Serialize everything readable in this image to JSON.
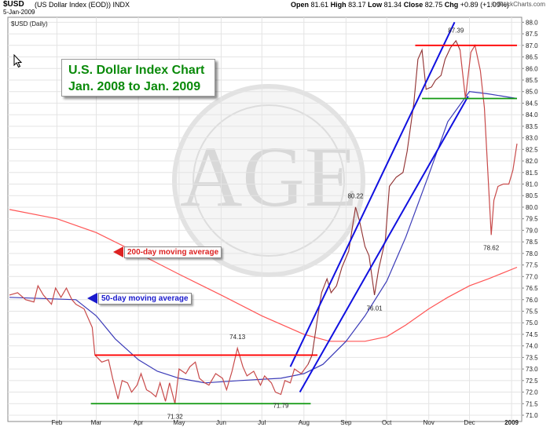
{
  "header": {
    "symbol": "$USD",
    "description": "(US Dollar Index (EOD)) INDX",
    "date": "5-Jan-2009",
    "panel_label": "$USD (Daily)",
    "open_label": "Open",
    "open": "81.61",
    "high_label": "High",
    "high": "83.17",
    "low_label": "Low",
    "low": "81.34",
    "close_label": "Close",
    "close": "82.75",
    "chg_label": "Chg",
    "chg": "+0.89 (+1.09%)",
    "credit": "© StockCharts.com"
  },
  "annotations": {
    "title_line1": "U.S. Dollar Index Chart",
    "title_line2": "Jan. 2008 to Jan. 2009",
    "ma200_label": "200-day moving average",
    "ma50_label": "50-day moving average"
  },
  "colors": {
    "price": "#c84a4a",
    "price_dark": "#222222",
    "ma50": "#3b3bb8",
    "ma200": "#ff5555",
    "channel": "#1010e0",
    "resistance": "#ff0000",
    "support": "#119911",
    "title_text": "#0a8a0a"
  },
  "chart_data": {
    "type": "line",
    "title": "U.S. Dollar Index Chart Jan. 2008 to Jan. 2009",
    "y_axis": {
      "min": 71.0,
      "max": 88.0,
      "step": 0.5,
      "side": "right"
    },
    "x_ticks": [
      "Feb",
      "Mar",
      "Apr",
      "May",
      "Jun",
      "Jul",
      "Aug",
      "Sep",
      "Oct",
      "Nov",
      "Dec",
      "2009"
    ],
    "grid": true,
    "point_labels": [
      {
        "text": "71.32",
        "date": "2008-04-28",
        "value": 71.32
      },
      {
        "text": "74.13",
        "date": "2008-06-13",
        "value": 74.13
      },
      {
        "text": "71.79",
        "date": "2008-07-15",
        "value": 71.79
      },
      {
        "text": "80.22",
        "date": "2008-09-08",
        "value": 80.22
      },
      {
        "text": "76.01",
        "date": "2008-09-22",
        "value": 76.01
      },
      {
        "text": "87.39",
        "date": "2008-11-21",
        "value": 87.39
      },
      {
        "text": "78.62",
        "date": "2008-12-17",
        "value": 78.62
      }
    ],
    "series": [
      {
        "name": "$USD",
        "points": [
          [
            "2007-12-28",
            76.2
          ],
          [
            "2008-01-03",
            76.3
          ],
          [
            "2008-01-09",
            76.0
          ],
          [
            "2008-01-15",
            75.9
          ],
          [
            "2008-01-18",
            76.6
          ],
          [
            "2008-01-22",
            76.2
          ],
          [
            "2008-01-28",
            75.8
          ],
          [
            "2008-01-31",
            76.5
          ],
          [
            "2008-02-04",
            76.1
          ],
          [
            "2008-02-08",
            76.5
          ],
          [
            "2008-02-12",
            76.0
          ],
          [
            "2008-02-15",
            75.8
          ],
          [
            "2008-02-21",
            75.6
          ],
          [
            "2008-02-27",
            74.8
          ],
          [
            "2008-02-29",
            73.6
          ],
          [
            "2008-03-05",
            73.3
          ],
          [
            "2008-03-10",
            73.4
          ],
          [
            "2008-03-13",
            72.6
          ],
          [
            "2008-03-17",
            71.7
          ],
          [
            "2008-03-20",
            72.5
          ],
          [
            "2008-03-24",
            72.4
          ],
          [
            "2008-03-27",
            72.0
          ],
          [
            "2008-03-31",
            72.3
          ],
          [
            "2008-04-03",
            72.8
          ],
          [
            "2008-04-07",
            72.1
          ],
          [
            "2008-04-10",
            72.0
          ],
          [
            "2008-04-14",
            71.8
          ],
          [
            "2008-04-17",
            72.4
          ],
          [
            "2008-04-21",
            71.6
          ],
          [
            "2008-04-24",
            72.4
          ],
          [
            "2008-04-28",
            71.5
          ],
          [
            "2008-05-01",
            73.0
          ],
          [
            "2008-05-06",
            72.8
          ],
          [
            "2008-05-09",
            73.1
          ],
          [
            "2008-05-13",
            73.3
          ],
          [
            "2008-05-16",
            72.6
          ],
          [
            "2008-05-20",
            72.4
          ],
          [
            "2008-05-23",
            72.3
          ],
          [
            "2008-05-28",
            72.8
          ],
          [
            "2008-06-02",
            72.6
          ],
          [
            "2008-06-05",
            72.1
          ],
          [
            "2008-06-09",
            72.9
          ],
          [
            "2008-06-13",
            73.9
          ],
          [
            "2008-06-17",
            73.1
          ],
          [
            "2008-06-20",
            72.7
          ],
          [
            "2008-06-25",
            72.9
          ],
          [
            "2008-06-30",
            72.3
          ],
          [
            "2008-07-03",
            72.7
          ],
          [
            "2008-07-08",
            72.4
          ],
          [
            "2008-07-11",
            72.0
          ],
          [
            "2008-07-15",
            71.9
          ],
          [
            "2008-07-18",
            72.5
          ],
          [
            "2008-07-22",
            72.4
          ],
          [
            "2008-07-25",
            73.0
          ],
          [
            "2008-07-30",
            72.8
          ],
          [
            "2008-08-04",
            73.2
          ],
          [
            "2008-08-07",
            73.6
          ],
          [
            "2008-08-11",
            75.2
          ],
          [
            "2008-08-14",
            76.3
          ],
          [
            "2008-08-18",
            76.9
          ],
          [
            "2008-08-21",
            76.3
          ],
          [
            "2008-08-25",
            76.6
          ],
          [
            "2008-08-29",
            77.4
          ],
          [
            "2008-09-03",
            78.1
          ],
          [
            "2008-09-08",
            80.0
          ],
          [
            "2008-09-11",
            79.4
          ],
          [
            "2008-09-15",
            78.3
          ],
          [
            "2008-09-18",
            77.9
          ],
          [
            "2008-09-22",
            76.2
          ],
          [
            "2008-09-25",
            77.3
          ],
          [
            "2008-09-30",
            78.6
          ],
          [
            "2008-10-03",
            80.9
          ],
          [
            "2008-10-08",
            81.3
          ],
          [
            "2008-10-13",
            81.5
          ],
          [
            "2008-10-16",
            82.4
          ],
          [
            "2008-10-21",
            84.5
          ],
          [
            "2008-10-24",
            86.4
          ],
          [
            "2008-10-27",
            86.8
          ],
          [
            "2008-10-30",
            85.1
          ],
          [
            "2008-11-03",
            85.2
          ],
          [
            "2008-11-06",
            85.5
          ],
          [
            "2008-11-10",
            85.7
          ],
          [
            "2008-11-13",
            86.4
          ],
          [
            "2008-11-17",
            86.9
          ],
          [
            "2008-11-21",
            87.2
          ],
          [
            "2008-11-24",
            86.8
          ],
          [
            "2008-11-28",
            84.7
          ],
          [
            "2008-12-02",
            86.7
          ],
          [
            "2008-12-05",
            87.0
          ],
          [
            "2008-12-09",
            85.9
          ],
          [
            "2008-12-12",
            84.3
          ],
          [
            "2008-12-17",
            78.8
          ],
          [
            "2008-12-19",
            80.3
          ],
          [
            "2008-12-22",
            80.9
          ],
          [
            "2008-12-26",
            81.0
          ],
          [
            "2008-12-30",
            81.0
          ],
          [
            "2009-01-02",
            81.6
          ],
          [
            "2009-01-05",
            82.75
          ]
        ]
      },
      {
        "name": "50-day moving average",
        "points": [
          [
            "2007-12-28",
            76.1
          ],
          [
            "2008-02-15",
            76.0
          ],
          [
            "2008-03-01",
            75.3
          ],
          [
            "2008-03-15",
            74.3
          ],
          [
            "2008-04-01",
            73.4
          ],
          [
            "2008-04-15",
            72.9
          ],
          [
            "2008-05-01",
            72.6
          ],
          [
            "2008-05-20",
            72.4
          ],
          [
            "2008-06-15",
            72.5
          ],
          [
            "2008-07-15",
            72.6
          ],
          [
            "2008-08-01",
            72.8
          ],
          [
            "2008-08-15",
            73.2
          ],
          [
            "2008-09-01",
            74.2
          ],
          [
            "2008-09-15",
            75.3
          ],
          [
            "2008-10-01",
            76.8
          ],
          [
            "2008-10-15",
            78.7
          ],
          [
            "2008-11-01",
            81.4
          ],
          [
            "2008-11-15",
            83.7
          ],
          [
            "2008-12-01",
            85.0
          ],
          [
            "2008-12-15",
            84.9
          ],
          [
            "2009-01-05",
            84.7
          ]
        ]
      },
      {
        "name": "200-day moving average",
        "points": [
          [
            "2007-12-28",
            79.9
          ],
          [
            "2008-02-01",
            79.5
          ],
          [
            "2008-03-01",
            78.9
          ],
          [
            "2008-04-01",
            78.0
          ],
          [
            "2008-05-01",
            77.1
          ],
          [
            "2008-06-01",
            76.2
          ],
          [
            "2008-07-01",
            75.3
          ],
          [
            "2008-08-01",
            74.5
          ],
          [
            "2008-08-20",
            74.2
          ],
          [
            "2008-09-15",
            74.2
          ],
          [
            "2008-10-01",
            74.4
          ],
          [
            "2008-10-15",
            74.9
          ],
          [
            "2008-11-01",
            75.6
          ],
          [
            "2008-11-15",
            76.1
          ],
          [
            "2008-12-01",
            76.6
          ],
          [
            "2008-12-15",
            76.9
          ],
          [
            "2009-01-05",
            77.4
          ]
        ]
      }
    ],
    "trend_lines": [
      {
        "kind": "channel",
        "from": [
          "2008-07-22",
          73.1
        ],
        "to": [
          "2008-11-20",
          88.0
        ]
      },
      {
        "kind": "channel",
        "from": [
          "2008-07-29",
          72.0
        ],
        "to": [
          "2008-11-30",
          84.8
        ]
      },
      {
        "kind": "resistance",
        "from": [
          "2008-02-29",
          73.6
        ],
        "to": [
          "2008-08-11",
          73.6
        ]
      },
      {
        "kind": "support",
        "from": [
          "2008-02-26",
          71.5
        ],
        "to": [
          "2008-08-06",
          71.5
        ]
      },
      {
        "kind": "resistance",
        "from": [
          "2008-10-22",
          87.0
        ],
        "to": [
          "2009-01-05",
          87.0
        ]
      },
      {
        "kind": "support",
        "from": [
          "2008-10-27",
          84.7
        ],
        "to": [
          "2009-01-05",
          84.7
        ]
      }
    ]
  }
}
